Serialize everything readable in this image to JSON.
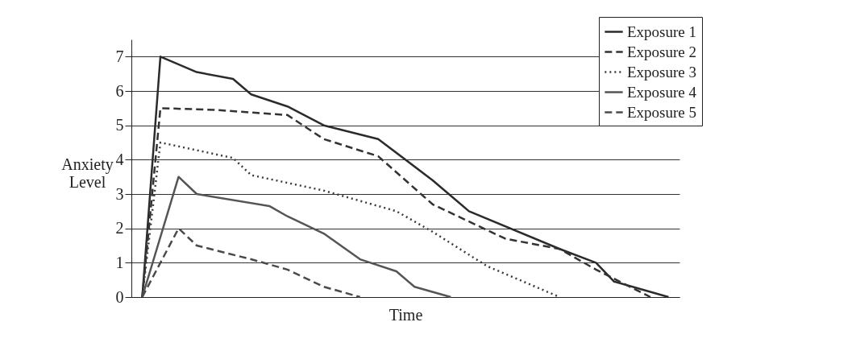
{
  "chart_data": {
    "type": "line",
    "xlabel": "Time",
    "ylabel": "Anxiety Level",
    "categories": [
      null,
      null,
      null,
      null,
      null,
      null,
      null,
      null,
      null,
      null,
      null,
      null,
      null,
      null,
      null,
      null,
      null,
      null,
      null,
      null,
      null,
      null,
      null,
      null,
      null,
      null,
      null,
      null,
      null,
      null
    ],
    "series": [
      {
        "name": "Exposure 1",
        "color": "#2b2b2b",
        "line_style": "solid",
        "values": [
          0,
          7,
          null,
          6.55,
          null,
          6.35,
          5.9,
          null,
          5.55,
          null,
          5.0,
          null,
          null,
          4.6,
          null,
          null,
          3.4,
          null,
          2.5,
          null,
          null,
          null,
          null,
          1.4,
          null,
          1.0,
          0.45,
          null,
          null,
          0
        ]
      },
      {
        "name": "Exposure 2",
        "color": "#333333",
        "line_style": "dashed",
        "values": [
          0,
          5.5,
          null,
          null,
          5.45,
          null,
          null,
          null,
          5.3,
          null,
          4.6,
          null,
          null,
          4.1,
          null,
          null,
          2.7,
          null,
          null,
          null,
          1.7,
          null,
          null,
          1.4,
          null,
          0.8,
          null,
          null,
          0,
          null
        ]
      },
      {
        "name": "Exposure 3",
        "color": "#3a3a3a",
        "line_style": "dotted",
        "values": [
          0,
          4.5,
          null,
          null,
          null,
          4.05,
          3.55,
          null,
          null,
          null,
          3.1,
          null,
          null,
          null,
          2.5,
          null,
          1.9,
          null,
          null,
          0.9,
          null,
          null,
          null,
          0,
          null,
          null,
          null,
          null,
          null,
          null
        ]
      },
      {
        "name": "Exposure 4",
        "color": "#555555",
        "line_style": "solid",
        "values": [
          0,
          null,
          3.5,
          3.0,
          null,
          null,
          null,
          2.65,
          2.35,
          null,
          1.85,
          null,
          1.1,
          null,
          0.75,
          0.3,
          null,
          0,
          null,
          null,
          null,
          null,
          null,
          null,
          null,
          null,
          null,
          null,
          null,
          null
        ]
      },
      {
        "name": "Exposure 5",
        "color": "#4a4a4a",
        "line_style": "dashed",
        "values": [
          0,
          null,
          2.0,
          1.5,
          null,
          null,
          1.1,
          null,
          0.8,
          null,
          0.3,
          null,
          0,
          null,
          null,
          null,
          null,
          null,
          null,
          null,
          null,
          null,
          null,
          null,
          null,
          null,
          null,
          null,
          null,
          null
        ]
      }
    ],
    "ylim": [
      0,
      7.5
    ],
    "yticks": [
      0,
      1,
      2,
      3,
      4,
      5,
      6,
      7
    ],
    "grid": "y",
    "legend": "top right",
    "tick_labels": "y"
  }
}
